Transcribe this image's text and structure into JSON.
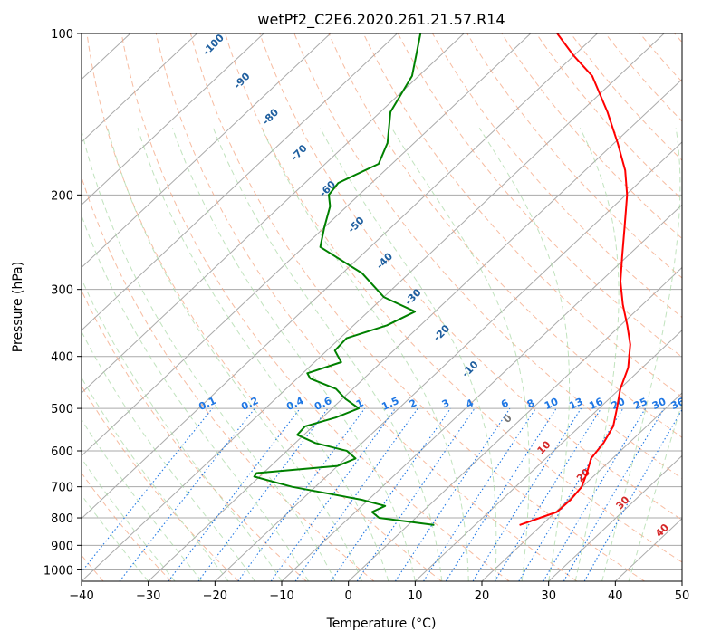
{
  "chart_data": {
    "type": "skew-t",
    "title": "wetPf2_C2E6.2020.261.21.57.R14",
    "xlabel": "Temperature (°C)",
    "ylabel": "Pressure (hPa)",
    "xlim": [
      -40,
      50
    ],
    "ylim": [
      1050,
      100
    ],
    "xticks": [
      -40,
      -30,
      -20,
      -10,
      0,
      10,
      20,
      30,
      40,
      50
    ],
    "yticks": [
      100,
      200,
      300,
      400,
      500,
      600,
      700,
      800,
      900,
      1000
    ],
    "grid": true,
    "series": [
      {
        "color": "#ff0000",
        "points": [
          [
            825,
            16.7
          ],
          [
            800,
            18.6
          ],
          [
            780,
            20.2
          ],
          [
            740,
            20.3
          ],
          [
            700,
            19.9
          ],
          [
            660,
            18.5
          ],
          [
            620,
            16.8
          ],
          [
            580,
            16.2
          ],
          [
            540,
            15.0
          ],
          [
            500,
            12.7
          ],
          [
            460,
            10.1
          ],
          [
            420,
            7.9
          ],
          [
            380,
            4.5
          ],
          [
            350,
            1.0
          ],
          [
            320,
            -3.0
          ],
          [
            290,
            -7.0
          ],
          [
            260,
            -10.8
          ],
          [
            230,
            -15.0
          ],
          [
            200,
            -19.8
          ],
          [
            180,
            -24.0
          ],
          [
            160,
            -29.5
          ],
          [
            140,
            -36.0
          ],
          [
            120,
            -44.0
          ],
          [
            110,
            -50.0
          ],
          [
            100,
            -56.0
          ]
        ]
      },
      {
        "color": "#008000",
        "points": [
          [
            825,
            3.9
          ],
          [
            800,
            -5.5
          ],
          [
            780,
            -7.5
          ],
          [
            760,
            -6.5
          ],
          [
            740,
            -11.0
          ],
          [
            700,
            -23.5
          ],
          [
            670,
            -30.8
          ],
          [
            660,
            -31.0
          ],
          [
            640,
            -20.0
          ],
          [
            620,
            -18.5
          ],
          [
            600,
            -21.0
          ],
          [
            580,
            -27.0
          ],
          [
            560,
            -31.0
          ],
          [
            540,
            -31.2
          ],
          [
            520,
            -28.0
          ],
          [
            500,
            -26.0
          ],
          [
            480,
            -29.5
          ],
          [
            460,
            -32.5
          ],
          [
            440,
            -38.0
          ],
          [
            430,
            -39.3
          ],
          [
            410,
            -36.0
          ],
          [
            390,
            -38.8
          ],
          [
            370,
            -39.0
          ],
          [
            350,
            -35.0
          ],
          [
            330,
            -33.0
          ],
          [
            310,
            -40.0
          ],
          [
            280,
            -47.0
          ],
          [
            250,
            -57.5
          ],
          [
            230,
            -60.0
          ],
          [
            210,
            -62.5
          ],
          [
            200,
            -64.5
          ],
          [
            190,
            -65.0
          ],
          [
            175,
            -62.0
          ],
          [
            160,
            -64.0
          ],
          [
            140,
            -68.5
          ],
          [
            120,
            -71.0
          ],
          [
            100,
            -76.5
          ]
        ]
      }
    ],
    "dry_adiabat_labels": [
      "-100",
      "-90",
      "-80",
      "-70",
      "-60",
      "-50",
      "-40",
      "-30",
      "-20",
      "-10",
      "0",
      "10",
      "20",
      "30",
      "40"
    ],
    "mixing_ratio_labels": [
      "0.1",
      "0.2",
      "0.4",
      "0.6",
      "1",
      "1.5",
      "2",
      "3",
      "4",
      "6",
      "8",
      "10",
      "13",
      "16",
      "20",
      "25",
      "30",
      "36"
    ],
    "colors": {
      "temperature": "#ff0000",
      "dewpoint": "#008000",
      "dry_adiabat": "#f4a582",
      "moist_adiabat": "#a6d7a2",
      "mixing_ratio": "#1f77e4",
      "isotherm": "#aaaaaa",
      "label_blue": "#1f5f9f",
      "label_red": "#d62728"
    }
  }
}
